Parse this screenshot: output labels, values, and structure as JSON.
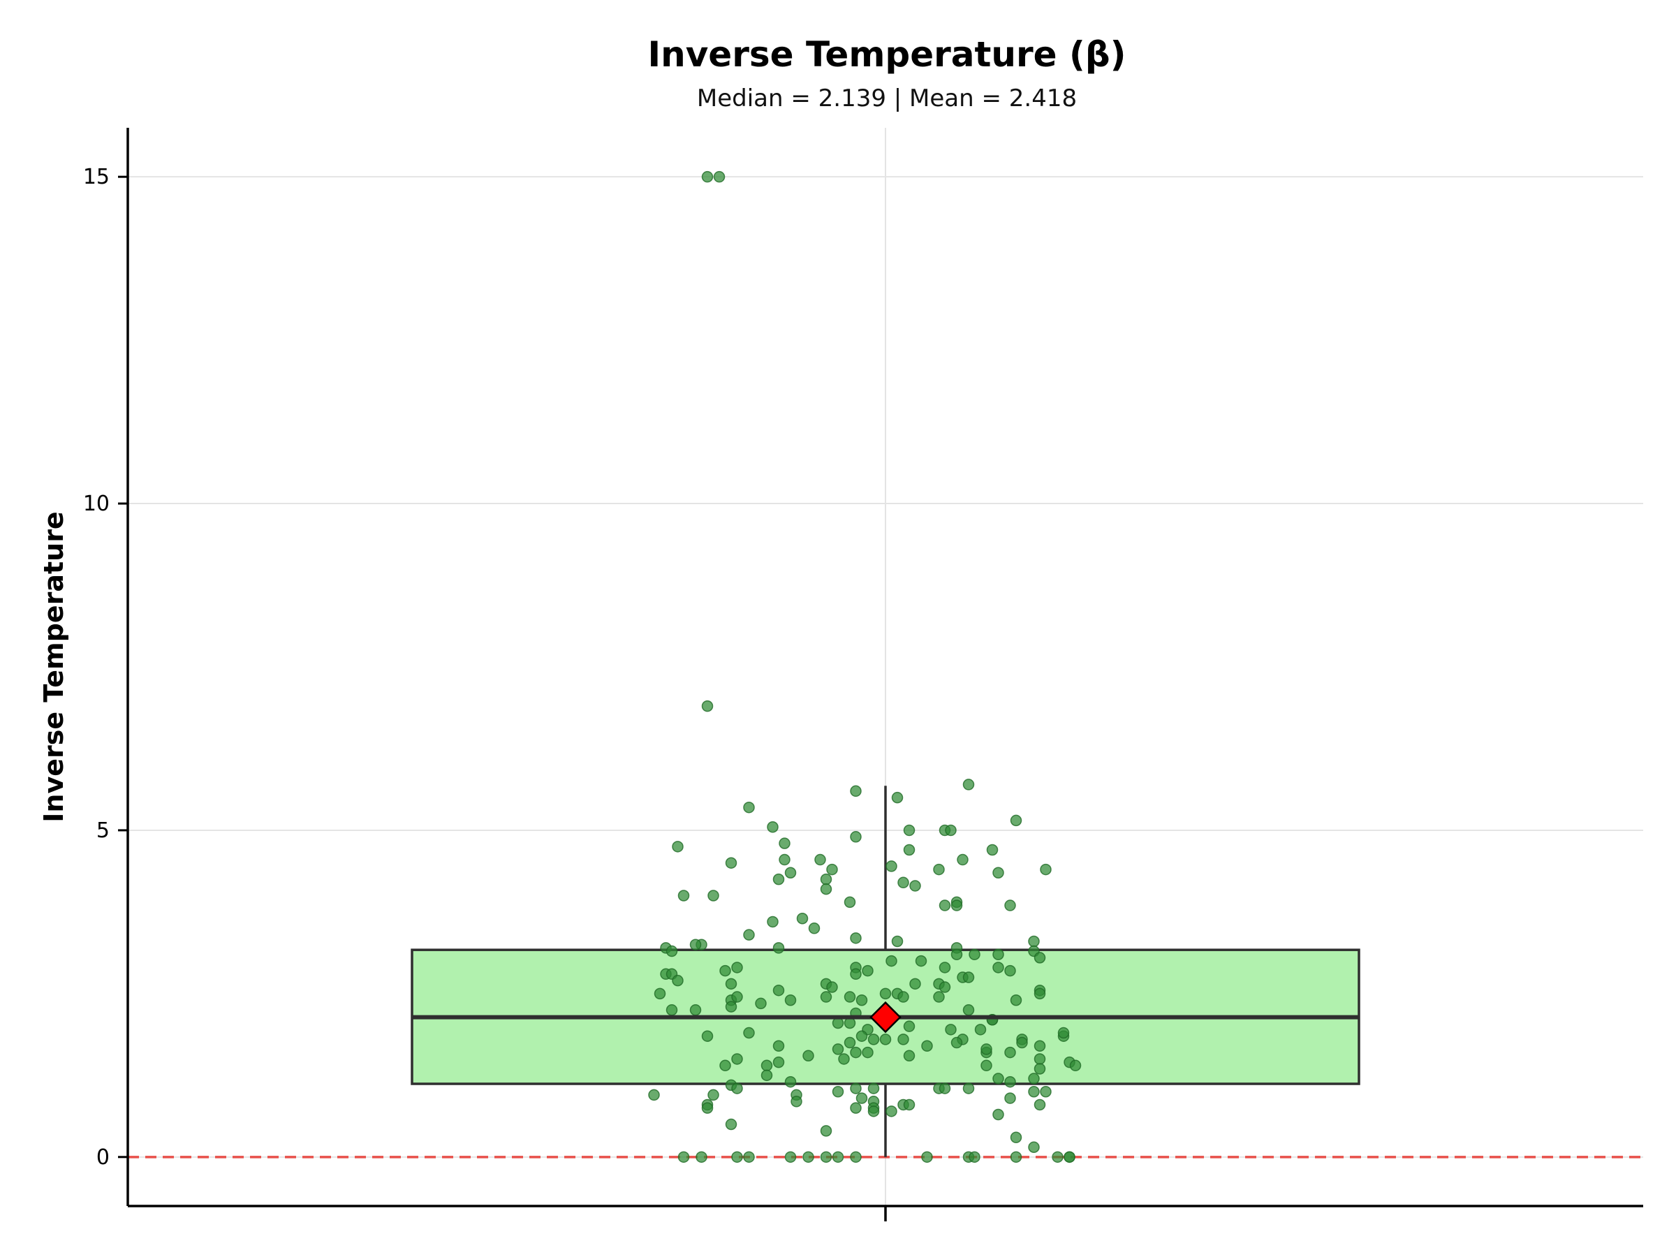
{
  "chart_data": {
    "type": "box",
    "title": "Inverse Temperature (β)",
    "subtitle": "Median = 2.139 | Mean = 2.418",
    "xlabel": "",
    "ylabel": "Inverse Temperature",
    "ylim": [
      -0.75,
      15.75
    ],
    "y_ticks": [
      0,
      5,
      10,
      15
    ],
    "grid": true,
    "reference_line": {
      "y": 0,
      "style": "dashed",
      "color": "#e8504a"
    },
    "box": {
      "q1": 1.12,
      "median": 2.139,
      "q3": 3.17,
      "whisker_low": 0,
      "whisker_high": 5.68,
      "mean": 2.418,
      "fill_color": "#b1f1ae",
      "edge_color": "#2f2f2f",
      "mean_marker_color": "#ff0000"
    },
    "points_color": "#2f8a35",
    "points": [
      {
        "x": -0.3,
        "y": 15.0
      },
      {
        "x": -0.28,
        "y": 15.0
      },
      {
        "x": -0.3,
        "y": 6.9
      },
      {
        "x": -0.23,
        "y": 5.35
      },
      {
        "x": -0.05,
        "y": 5.6
      },
      {
        "x": 0.02,
        "y": 5.5
      },
      {
        "x": 0.14,
        "y": 5.7
      },
      {
        "x": 0.22,
        "y": 5.15
      },
      {
        "x": -0.19,
        "y": 5.05
      },
      {
        "x": -0.05,
        "y": 4.9
      },
      {
        "x": -0.17,
        "y": 4.8
      },
      {
        "x": -0.35,
        "y": 4.75
      },
      {
        "x": 0.04,
        "y": 5.0
      },
      {
        "x": 0.1,
        "y": 5.0
      },
      {
        "x": 0.11,
        "y": 5.0
      },
      {
        "x": 0.04,
        "y": 4.7
      },
      {
        "x": 0.18,
        "y": 4.7
      },
      {
        "x": -0.17,
        "y": 4.55
      },
      {
        "x": -0.11,
        "y": 4.55
      },
      {
        "x": -0.26,
        "y": 4.5
      },
      {
        "x": -0.09,
        "y": 4.4
      },
      {
        "x": 0.01,
        "y": 4.45
      },
      {
        "x": 0.09,
        "y": 4.4
      },
      {
        "x": 0.13,
        "y": 4.55
      },
      {
        "x": 0.27,
        "y": 4.4
      },
      {
        "x": 0.19,
        "y": 4.35
      },
      {
        "x": -0.16,
        "y": 4.35
      },
      {
        "x": -0.18,
        "y": 4.25
      },
      {
        "x": -0.1,
        "y": 4.25
      },
      {
        "x": -0.1,
        "y": 4.1
      },
      {
        "x": 0.03,
        "y": 4.2
      },
      {
        "x": 0.05,
        "y": 4.15
      },
      {
        "x": -0.34,
        "y": 4.0
      },
      {
        "x": -0.29,
        "y": 4.0
      },
      {
        "x": -0.06,
        "y": 3.9
      },
      {
        "x": 0.1,
        "y": 3.85
      },
      {
        "x": 0.12,
        "y": 3.9
      },
      {
        "x": 0.12,
        "y": 3.85
      },
      {
        "x": 0.21,
        "y": 3.85
      },
      {
        "x": -0.19,
        "y": 3.6
      },
      {
        "x": -0.14,
        "y": 3.65
      },
      {
        "x": -0.12,
        "y": 3.5
      },
      {
        "x": -0.23,
        "y": 3.4
      },
      {
        "x": -0.05,
        "y": 3.35
      },
      {
        "x": 0.02,
        "y": 3.3
      },
      {
        "x": 0.25,
        "y": 3.3
      },
      {
        "x": -0.31,
        "y": 3.25
      },
      {
        "x": -0.32,
        "y": 3.25
      },
      {
        "x": 0.12,
        "y": 3.2
      },
      {
        "x": -0.18,
        "y": 3.2
      },
      {
        "x": -0.37,
        "y": 3.2
      },
      {
        "x": 0.25,
        "y": 3.15
      },
      {
        "x": 0.12,
        "y": 3.1
      },
      {
        "x": 0.15,
        "y": 3.1
      },
      {
        "x": 0.19,
        "y": 3.1
      },
      {
        "x": 0.26,
        "y": 3.05
      },
      {
        "x": -0.36,
        "y": 3.15
      },
      {
        "x": 0.01,
        "y": 3.0
      },
      {
        "x": 0.06,
        "y": 3.0
      },
      {
        "x": -0.25,
        "y": 2.9
      },
      {
        "x": -0.27,
        "y": 2.85
      },
      {
        "x": -0.37,
        "y": 2.8
      },
      {
        "x": -0.36,
        "y": 2.8
      },
      {
        "x": -0.05,
        "y": 2.9
      },
      {
        "x": -0.03,
        "y": 2.85
      },
      {
        "x": 0.1,
        "y": 2.9
      },
      {
        "x": 0.19,
        "y": 2.9
      },
      {
        "x": 0.21,
        "y": 2.85
      },
      {
        "x": 0.13,
        "y": 2.75
      },
      {
        "x": 0.14,
        "y": 2.75
      },
      {
        "x": -0.05,
        "y": 2.8
      },
      {
        "x": -0.35,
        "y": 2.7
      },
      {
        "x": -0.1,
        "y": 2.65
      },
      {
        "x": -0.09,
        "y": 2.6
      },
      {
        "x": -0.26,
        "y": 2.65
      },
      {
        "x": 0.05,
        "y": 2.65
      },
      {
        "x": 0.09,
        "y": 2.65
      },
      {
        "x": 0.1,
        "y": 2.6
      },
      {
        "x": -0.18,
        "y": 2.55
      },
      {
        "x": 0.0,
        "y": 2.5
      },
      {
        "x": 0.02,
        "y": 2.5
      },
      {
        "x": 0.26,
        "y": 2.55
      },
      {
        "x": 0.26,
        "y": 2.5
      },
      {
        "x": -0.38,
        "y": 2.5
      },
      {
        "x": -0.26,
        "y": 2.4
      },
      {
        "x": -0.25,
        "y": 2.45
      },
      {
        "x": -0.21,
        "y": 2.35
      },
      {
        "x": -0.16,
        "y": 2.4
      },
      {
        "x": -0.1,
        "y": 2.45
      },
      {
        "x": -0.06,
        "y": 2.45
      },
      {
        "x": -0.04,
        "y": 2.4
      },
      {
        "x": 0.03,
        "y": 2.45
      },
      {
        "x": 0.09,
        "y": 2.45
      },
      {
        "x": 0.22,
        "y": 2.4
      },
      {
        "x": -0.26,
        "y": 2.3
      },
      {
        "x": -0.36,
        "y": 2.25
      },
      {
        "x": -0.32,
        "y": 2.25
      },
      {
        "x": -0.05,
        "y": 2.2
      },
      {
        "x": 0.14,
        "y": 2.25
      },
      {
        "x": 0.18,
        "y": 2.1
      },
      {
        "x": -0.08,
        "y": 2.05
      },
      {
        "x": -0.06,
        "y": 2.05
      },
      {
        "x": 0.04,
        "y": 2.0
      },
      {
        "x": 0.18,
        "y": 2.1
      },
      {
        "x": -0.03,
        "y": 1.95
      },
      {
        "x": 0.11,
        "y": 1.95
      },
      {
        "x": 0.16,
        "y": 1.95
      },
      {
        "x": -0.23,
        "y": 1.9
      },
      {
        "x": -0.04,
        "y": 1.85
      },
      {
        "x": -0.02,
        "y": 1.8
      },
      {
        "x": 0.03,
        "y": 1.8
      },
      {
        "x": -0.3,
        "y": 1.85
      },
      {
        "x": 0.13,
        "y": 1.8
      },
      {
        "x": 0.12,
        "y": 1.75
      },
      {
        "x": -0.18,
        "y": 1.7
      },
      {
        "x": -0.06,
        "y": 1.75
      },
      {
        "x": 0.0,
        "y": 1.8
      },
      {
        "x": 0.07,
        "y": 1.7
      },
      {
        "x": 0.23,
        "y": 1.8
      },
      {
        "x": 0.23,
        "y": 1.75
      },
      {
        "x": 0.26,
        "y": 1.7
      },
      {
        "x": 0.3,
        "y": 1.85
      },
      {
        "x": 0.3,
        "y": 1.9
      },
      {
        "x": -0.08,
        "y": 1.65
      },
      {
        "x": -0.05,
        "y": 1.6
      },
      {
        "x": -0.03,
        "y": 1.6
      },
      {
        "x": 0.17,
        "y": 1.6
      },
      {
        "x": 0.17,
        "y": 1.65
      },
      {
        "x": 0.21,
        "y": 1.6
      },
      {
        "x": 0.26,
        "y": 1.5
      },
      {
        "x": -0.13,
        "y": 1.55
      },
      {
        "x": -0.07,
        "y": 1.5
      },
      {
        "x": 0.04,
        "y": 1.55
      },
      {
        "x": -0.25,
        "y": 1.5
      },
      {
        "x": -0.27,
        "y": 1.4
      },
      {
        "x": -0.18,
        "y": 1.45
      },
      {
        "x": -0.2,
        "y": 1.4
      },
      {
        "x": 0.17,
        "y": 1.4
      },
      {
        "x": 0.26,
        "y": 1.35
      },
      {
        "x": 0.31,
        "y": 1.45
      },
      {
        "x": 0.32,
        "y": 1.4
      },
      {
        "x": -0.2,
        "y": 1.25
      },
      {
        "x": -0.16,
        "y": 1.15
      },
      {
        "x": 0.19,
        "y": 1.2
      },
      {
        "x": 0.21,
        "y": 1.15
      },
      {
        "x": 0.25,
        "y": 1.2
      },
      {
        "x": -0.26,
        "y": 1.1
      },
      {
        "x": -0.25,
        "y": 1.05
      },
      {
        "x": -0.05,
        "y": 1.05
      },
      {
        "x": -0.08,
        "y": 1.0
      },
      {
        "x": -0.02,
        "y": 1.05
      },
      {
        "x": 0.09,
        "y": 1.05
      },
      {
        "x": 0.1,
        "y": 1.05
      },
      {
        "x": 0.14,
        "y": 1.05
      },
      {
        "x": 0.25,
        "y": 1.0
      },
      {
        "x": 0.27,
        "y": 1.0
      },
      {
        "x": -0.39,
        "y": 0.95
      },
      {
        "x": -0.29,
        "y": 0.95
      },
      {
        "x": -0.15,
        "y": 0.95
      },
      {
        "x": -0.15,
        "y": 0.85
      },
      {
        "x": -0.04,
        "y": 0.9
      },
      {
        "x": -0.02,
        "y": 0.85
      },
      {
        "x": 0.21,
        "y": 0.9
      },
      {
        "x": -0.3,
        "y": 0.8
      },
      {
        "x": -0.3,
        "y": 0.75
      },
      {
        "x": -0.05,
        "y": 0.75
      },
      {
        "x": -0.02,
        "y": 0.75
      },
      {
        "x": 0.03,
        "y": 0.8
      },
      {
        "x": 0.04,
        "y": 0.8
      },
      {
        "x": 0.26,
        "y": 0.8
      },
      {
        "x": -0.02,
        "y": 0.7
      },
      {
        "x": 0.01,
        "y": 0.7
      },
      {
        "x": 0.19,
        "y": 0.65
      },
      {
        "x": -0.26,
        "y": 0.5
      },
      {
        "x": -0.1,
        "y": 0.4
      },
      {
        "x": 0.22,
        "y": 0.3
      },
      {
        "x": 0.25,
        "y": 0.15
      },
      {
        "x": -0.34,
        "y": 0.0
      },
      {
        "x": -0.31,
        "y": 0.0
      },
      {
        "x": -0.25,
        "y": 0.0
      },
      {
        "x": -0.23,
        "y": 0.0
      },
      {
        "x": -0.16,
        "y": 0.0
      },
      {
        "x": -0.13,
        "y": 0.0
      },
      {
        "x": -0.1,
        "y": 0.0
      },
      {
        "x": -0.08,
        "y": 0.0
      },
      {
        "x": -0.05,
        "y": 0.0
      },
      {
        "x": 0.07,
        "y": 0.0
      },
      {
        "x": 0.14,
        "y": 0.0
      },
      {
        "x": 0.15,
        "y": 0.0
      },
      {
        "x": 0.22,
        "y": 0.0
      },
      {
        "x": 0.29,
        "y": 0.0
      },
      {
        "x": 0.31,
        "y": 0.0
      },
      {
        "x": 0.31,
        "y": 0.0
      }
    ]
  }
}
